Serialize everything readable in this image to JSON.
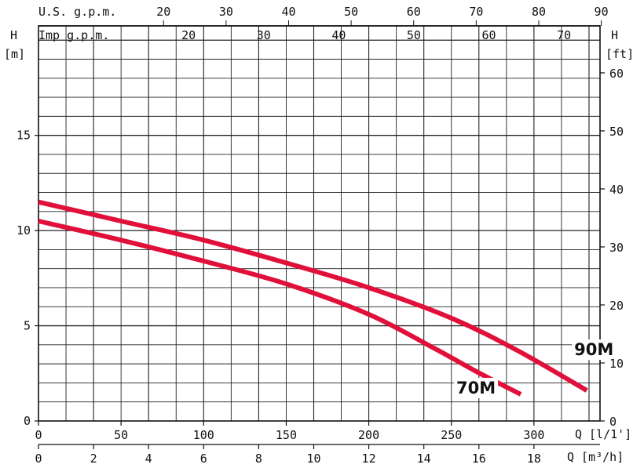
{
  "chart_data": {
    "type": "line",
    "grid": true,
    "colors": {
      "curves": "#e0103a",
      "grid": "#222222"
    },
    "left_axis": {
      "label_top": "H",
      "unit": "[m]",
      "range": [
        0,
        20.75
      ],
      "ticks": [
        0,
        5,
        10,
        15
      ]
    },
    "right_axis": {
      "label_top": "H",
      "unit": "[ft]",
      "range": [
        0,
        68.1
      ],
      "ticks": [
        0,
        10,
        20,
        30,
        40,
        50,
        60
      ]
    },
    "bottom_axis_lpm": {
      "label": "Q [l/1']",
      "range": [
        0,
        340
      ],
      "ticks": [
        0,
        50,
        100,
        150,
        200,
        250,
        300
      ]
    },
    "bottom_axis_m3h": {
      "label": "Q [m³/h]",
      "range": [
        0,
        20.4
      ],
      "ticks": [
        0,
        2,
        4,
        6,
        8,
        10,
        12,
        14,
        16,
        18
      ]
    },
    "top_axis_usgpm": {
      "label": "U.S.  g.p.m.",
      "range": [
        0,
        89.8
      ],
      "ticks": [
        20,
        30,
        40,
        50,
        60,
        70,
        80,
        90
      ]
    },
    "top_axis_impgpm": {
      "label": "Imp  g.p.m.",
      "range": [
        0,
        74.8
      ],
      "ticks": [
        20,
        30,
        40,
        50,
        60,
        70
      ]
    },
    "series": [
      {
        "name": "90M",
        "x": [
          0,
          50,
          100,
          150,
          200,
          250,
          290,
          332
        ],
        "y": [
          11.5,
          10.5,
          9.5,
          8.3,
          7.0,
          5.4,
          3.7,
          1.6
        ]
      },
      {
        "name": "70M",
        "x": [
          0,
          50,
          100,
          150,
          200,
          240,
          265,
          292
        ],
        "y": [
          10.5,
          9.5,
          8.4,
          7.2,
          5.6,
          3.8,
          2.6,
          1.4
        ]
      }
    ]
  }
}
